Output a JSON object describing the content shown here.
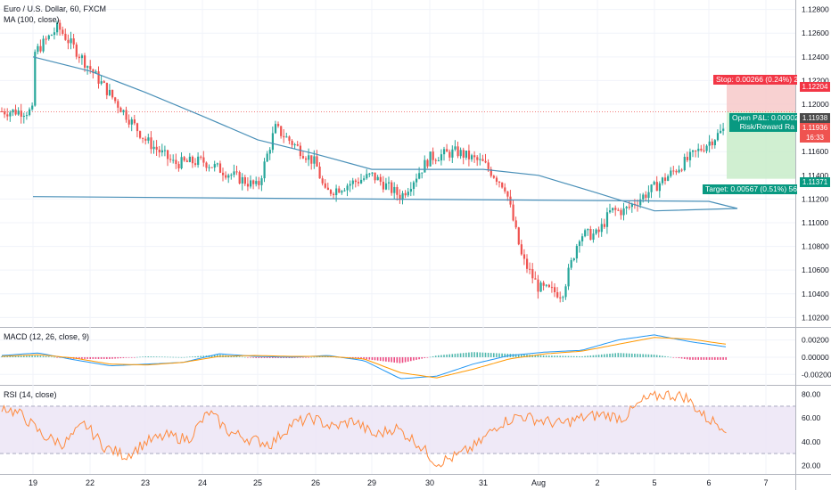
{
  "main": {
    "title": "Euro / U.S. Dollar, 60, FXCM",
    "ma_label": "MA (100, close)"
  },
  "macd": {
    "label": "MACD (12, 26, close, 9)"
  },
  "rsi": {
    "label": "RSI (14, close)"
  },
  "overlays": {
    "stop_text": "Stop: 0.00266 (0.24%) 2",
    "pnl_text": "Open P&L: 0.00002",
    "rr_text": "Risk/Reward Ra",
    "target_text": "Target: 0.00567 (0.51%) 56"
  },
  "price_tags": {
    "stop": "1.12204",
    "last": "1.11938",
    "entry": "1.11936",
    "countdown": "16:33",
    "target": "1.11371"
  },
  "colors": {
    "up": "#26a69a",
    "down": "#ef5350",
    "ma": "#4a90b8",
    "macd": "#2196f3",
    "signal": "#ff9800",
    "rsi": "#ff8a3d",
    "stop_zone": "#f7c9c9",
    "target_zone": "#c8ecc9"
  },
  "chart_data": [
    {
      "type": "candlestick",
      "title": "Euro / U.S. Dollar, 60, FXCM",
      "ylim": [
        1.1015,
        1.1285
      ],
      "y_ticks": [
        "1.12800",
        "1.12600",
        "1.12400",
        "1.12200",
        "1.12000",
        "1.11800",
        "1.11600",
        "1.11400",
        "1.11200",
        "1.11000",
        "1.10800",
        "1.10600",
        "1.10400",
        "1.10200"
      ],
      "x_ticks": [
        "19",
        "22",
        "23",
        "24",
        "25",
        "26",
        "29",
        "30",
        "31",
        "Aug",
        "2",
        "5",
        "6",
        "7"
      ],
      "close_path": [
        {
          "x": "19",
          "y": 1.1242
        },
        {
          "x": "20",
          "y": 1.1265
        },
        {
          "x": "22",
          "y": 1.123
        },
        {
          "x": "23",
          "y": 1.117
        },
        {
          "x": "23.5",
          "y": 1.115
        },
        {
          "x": "24",
          "y": 1.1152
        },
        {
          "x": "25",
          "y": 1.113
        },
        {
          "x": "25.3",
          "y": 1.118
        },
        {
          "x": "26",
          "y": 1.115
        },
        {
          "x": "26.5",
          "y": 1.1125
        },
        {
          "x": "29",
          "y": 1.114
        },
        {
          "x": "29.5",
          "y": 1.1122
        },
        {
          "x": "30",
          "y": 1.1155
        },
        {
          "x": "30.5",
          "y": 1.116
        },
        {
          "x": "31",
          "y": 1.115
        },
        {
          "x": "31.4",
          "y": 1.113
        },
        {
          "x": "31.7",
          "y": 1.107
        },
        {
          "x": "Aug",
          "y": 1.1045
        },
        {
          "x": "1.4",
          "y": 1.104
        },
        {
          "x": "1.7",
          "y": 1.109
        },
        {
          "x": "2",
          "y": 1.109
        },
        {
          "x": "2.5",
          "y": 1.111
        },
        {
          "x": "3",
          "y": 1.111
        },
        {
          "x": "5",
          "y": 1.113
        },
        {
          "x": "5.3",
          "y": 1.118
        },
        {
          "x": "5.6",
          "y": 1.122
        },
        {
          "x": "5.9",
          "y": 1.1245
        },
        {
          "x": "6.1",
          "y": 1.12
        },
        {
          "x": "6.3",
          "y": 1.1194
        }
      ],
      "ma_100": [
        {
          "x": "19",
          "y": 1.124
        },
        {
          "x": "22",
          "y": 1.1228
        },
        {
          "x": "23",
          "y": 1.121
        },
        {
          "x": "24",
          "y": 1.119
        },
        {
          "x": "25",
          "y": 1.117
        },
        {
          "x": "26",
          "y": 1.1158
        },
        {
          "x": "29",
          "y": 1.1145
        },
        {
          "x": "30",
          "y": 1.1145
        },
        {
          "x": "31",
          "y": 1.1145
        },
        {
          "x": "Aug",
          "y": 1.114
        },
        {
          "x": "2",
          "y": 1.1125
        },
        {
          "x": "5",
          "y": 1.111
        },
        {
          "x": "5.5",
          "y": 1.1112
        },
        {
          "x": "6",
          "y": 1.1118
        },
        {
          "x": "6.3",
          "y": 1.1122
        }
      ],
      "position": {
        "stop": 1.12204,
        "entry": 1.11936,
        "target": 1.11371
      }
    },
    {
      "type": "line",
      "title": "MACD (12, 26, close, 9)",
      "ylim": [
        -0.0028,
        0.003
      ],
      "y_ticks": [
        "0.00200",
        "0.00000",
        "-0.00200"
      ],
      "series": [
        {
          "name": "MACD",
          "values": [
            0.0002,
            0.0005,
            -0.0003,
            -0.001,
            -0.0008,
            -0.0006,
            0.0004,
            0.0001,
            0.0,
            0.0002,
            -0.0004,
            -0.0025,
            -0.0022,
            -0.0008,
            0.0002,
            0.0006,
            0.0008,
            0.002,
            0.0026,
            0.0018,
            0.0012
          ]
        },
        {
          "name": "Signal",
          "values": [
            0.0001,
            0.0003,
            -0.0001,
            -0.0008,
            -0.0009,
            -0.0006,
            0.0001,
            0.0002,
            0.0001,
            0.0001,
            -0.0002,
            -0.0018,
            -0.0024,
            -0.0014,
            -0.0002,
            0.0004,
            0.0007,
            0.0015,
            0.0023,
            0.0021,
            0.0015
          ]
        }
      ]
    },
    {
      "type": "line",
      "title": "RSI (14, close)",
      "ylim": [
        15,
        85
      ],
      "y_ticks": [
        "80.00",
        "60.00",
        "40.00",
        "20.00"
      ],
      "bands": [
        30,
        70
      ],
      "series": [
        {
          "name": "RSI",
          "values": [
            70,
            62,
            45,
            38,
            55,
            35,
            28,
            40,
            45,
            42,
            65,
            48,
            42,
            38,
            55,
            60,
            52,
            58,
            45,
            52,
            40,
            22,
            28,
            38,
            55,
            62,
            58,
            55,
            60,
            63,
            60,
            75,
            80,
            78,
            60,
            52
          ]
        }
      ]
    }
  ]
}
